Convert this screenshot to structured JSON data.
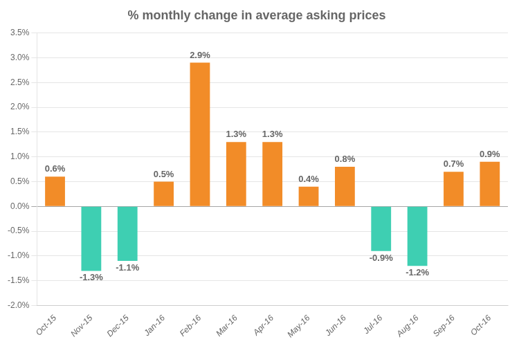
{
  "chart_data": {
    "type": "bar",
    "title": "% monthly change in average asking prices",
    "categories": [
      "Oct-15",
      "Nov-15",
      "Dec-15",
      "Jan-16",
      "Feb-16",
      "Mar-16",
      "Apr-16",
      "May-16",
      "Jun-16",
      "Jul-16",
      "Aug-16",
      "Sep-16",
      "Oct-16"
    ],
    "values": [
      0.6,
      -1.3,
      -1.1,
      0.5,
      2.9,
      1.3,
      1.3,
      0.4,
      0.8,
      -0.9,
      -1.2,
      0.7,
      0.9
    ],
    "value_labels": [
      "0.6%",
      "-1.3%",
      "-1.1%",
      "0.5%",
      "2.9%",
      "1.3%",
      "1.3%",
      "0.4%",
      "0.8%",
      "-0.9%",
      "-1.2%",
      "0.7%",
      "0.9%"
    ],
    "data_labels": true,
    "colors": [
      "#f28c28",
      "#3ecfb2",
      "#3ecfb2",
      "#f28c28",
      "#f28c28",
      "#f28c28",
      "#f28c28",
      "#f28c28",
      "#f28c28",
      "#3ecfb2",
      "#3ecfb2",
      "#f28c28",
      "#f28c28"
    ],
    "ylim": [
      -2.0,
      3.5
    ],
    "yticks": [
      {
        "value": -2.0,
        "label": "-2.0%"
      },
      {
        "value": -1.5,
        "label": "-1.5%"
      },
      {
        "value": -1.0,
        "label": "-1.0%"
      },
      {
        "value": -0.5,
        "label": "-0.5%"
      },
      {
        "value": 0.0,
        "label": "0.0%"
      },
      {
        "value": 0.5,
        "label": "0.5%"
      },
      {
        "value": 1.0,
        "label": "1.0%"
      },
      {
        "value": 1.5,
        "label": "1.5%"
      },
      {
        "value": 2.0,
        "label": "2.0%"
      },
      {
        "value": 2.5,
        "label": "2.5%"
      },
      {
        "value": 3.0,
        "label": "3.0%"
      },
      {
        "value": 3.5,
        "label": "3.5%"
      }
    ],
    "grid": true
  }
}
